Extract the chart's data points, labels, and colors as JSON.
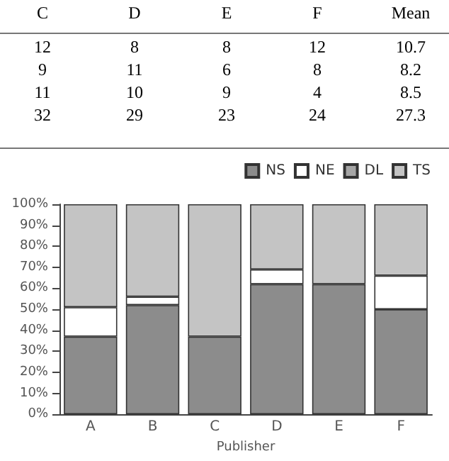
{
  "chart_data": {
    "type": "bar",
    "stacked": true,
    "xlabel": "Publisher",
    "categories": [
      "A",
      "B",
      "C",
      "D",
      "E",
      "F"
    ],
    "series": [
      {
        "name": "NS",
        "color": "#8c8c8c",
        "values": [
          37,
          52,
          37,
          62,
          62,
          50
        ]
      },
      {
        "name": "NE",
        "color": "#ffffff",
        "values": [
          14,
          4,
          0,
          7,
          0,
          16
        ]
      },
      {
        "name": "DL",
        "color": "#a6a6a6",
        "values": [
          0,
          0,
          0,
          0,
          0,
          0
        ]
      },
      {
        "name": "TS",
        "color": "#c4c4c4",
        "values": [
          49,
          44,
          63,
          31,
          38,
          34
        ]
      }
    ],
    "ylim": [
      0,
      100
    ],
    "yticks": [
      {
        "value": 0,
        "label": "0%"
      },
      {
        "value": 10,
        "label": "10%"
      },
      {
        "value": 20,
        "label": "20%"
      },
      {
        "value": 30,
        "label": "30%"
      },
      {
        "value": 40,
        "label": "40%"
      },
      {
        "value": 50,
        "label": "50%"
      },
      {
        "value": 60,
        "label": "60%"
      },
      {
        "value": 70,
        "label": "70%"
      },
      {
        "value": 80,
        "label": "80%"
      },
      {
        "value": 90,
        "label": "90%"
      },
      {
        "value": 100,
        "label": "100%"
      }
    ],
    "grid": false,
    "legend": "top right",
    "annotations": [
      "C",
      "D",
      "E",
      "F",
      "Mean",
      "12",
      "8",
      "8",
      "12",
      "10.7",
      "9",
      "11",
      "6",
      "8",
      "8.2",
      "11",
      "10",
      "9",
      "4",
      "8.5",
      "32",
      "29",
      "23",
      "24",
      "27.3"
    ]
  }
}
